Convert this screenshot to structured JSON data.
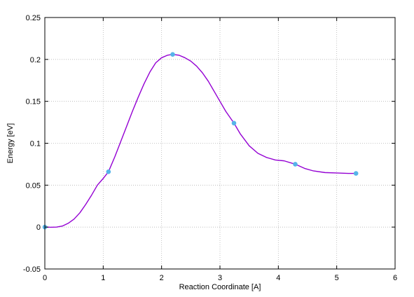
{
  "chart_data": {
    "type": "line",
    "title": "",
    "xlabel": "Reaction Coordinate [A]",
    "ylabel": "Energy [eV]",
    "xlim": [
      0,
      6
    ],
    "ylim": [
      -0.05,
      0.25
    ],
    "x_ticks": [
      0,
      1,
      2,
      3,
      4,
      5,
      6
    ],
    "y_ticks": [
      -0.05,
      0,
      0.05,
      0.1,
      0.15,
      0.2,
      0.25
    ],
    "x_tick_labels": [
      "0",
      "1",
      "2",
      "3",
      "4",
      "5",
      "6"
    ],
    "y_tick_labels": [
      "-0.05",
      "0",
      "0.05",
      "0.1",
      "0.15",
      "0.2",
      "0.25"
    ],
    "grid": true,
    "legend": "none",
    "series": [
      {
        "style": "points",
        "color": "#56b4e9",
        "x": [
          0,
          1.09,
          2.19,
          3.24,
          4.29,
          5.33
        ],
        "y": [
          0,
          0.066,
          0.206,
          0.124,
          0.075,
          0.064
        ]
      },
      {
        "style": "smooth-line",
        "color": "#9400d3",
        "x": [
          0,
          0.1,
          0.2,
          0.3,
          0.4,
          0.5,
          0.6,
          0.7,
          0.8,
          0.9,
          1.0,
          1.09,
          1.2,
          1.3,
          1.4,
          1.5,
          1.6,
          1.7,
          1.8,
          1.9,
          2.0,
          2.1,
          2.19,
          2.3,
          2.4,
          2.5,
          2.6,
          2.7,
          2.8,
          2.9,
          3.0,
          3.1,
          3.24,
          3.35,
          3.5,
          3.65,
          3.8,
          3.95,
          4.1,
          4.29,
          4.45,
          4.6,
          4.8,
          5.0,
          5.2,
          5.33
        ],
        "y": [
          0,
          -0.0002,
          0,
          0.0012,
          0.0045,
          0.0095,
          0.017,
          0.027,
          0.038,
          0.05,
          0.058,
          0.066,
          0.084,
          0.102,
          0.12,
          0.138,
          0.155,
          0.171,
          0.185,
          0.196,
          0.202,
          0.205,
          0.206,
          0.205,
          0.202,
          0.198,
          0.192,
          0.184,
          0.174,
          0.162,
          0.15,
          0.138,
          0.124,
          0.111,
          0.097,
          0.088,
          0.083,
          0.08,
          0.079,
          0.075,
          0.07,
          0.067,
          0.065,
          0.0645,
          0.064,
          0.064
        ]
      }
    ]
  }
}
